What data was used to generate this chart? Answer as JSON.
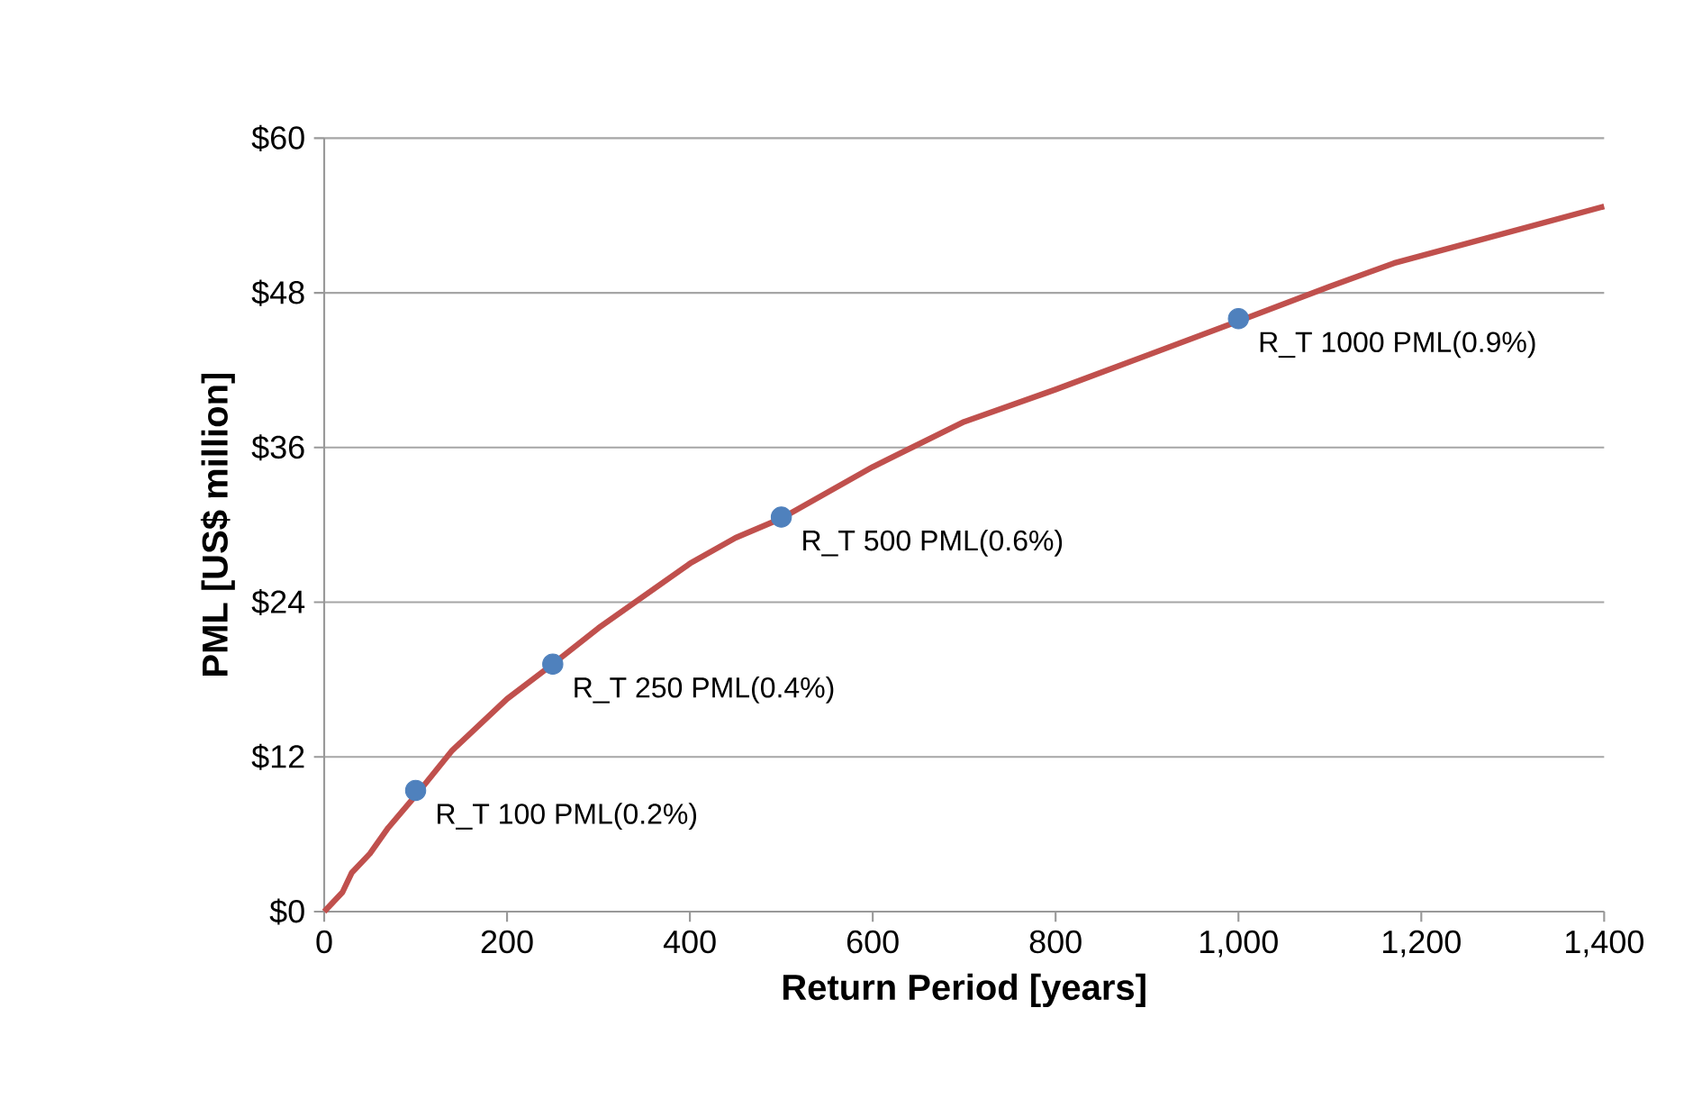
{
  "chart_data": {
    "type": "line",
    "xlabel": "Return Period [years]",
    "ylabel": "PML [US$ million]",
    "xlim": [
      0,
      1400
    ],
    "ylim": [
      0,
      60
    ],
    "xticks": [
      0,
      200,
      400,
      600,
      800,
      {
        "value": 1000,
        "label": "1,000"
      },
      {
        "value": 1200,
        "label": "1,200"
      },
      {
        "value": 1400,
        "label": "1,400"
      }
    ],
    "yticks": [
      {
        "value": 0,
        "label": "$0"
      },
      {
        "value": 12,
        "label": "$12"
      },
      {
        "value": 24,
        "label": "$24"
      },
      {
        "value": 36,
        "label": "$36"
      },
      {
        "value": 48,
        "label": "$48"
      },
      {
        "value": 60,
        "label": "$60"
      }
    ],
    "grid": "y",
    "series": [
      {
        "color": "#c0504d",
        "marker": "none",
        "x": [
          0,
          20,
          30,
          50,
          70,
          100,
          140,
          200,
          250,
          300,
          400,
          450,
          500,
          600,
          700,
          800,
          1000,
          1100,
          1170,
          1400
        ],
        "values": [
          0,
          1.5,
          3,
          4.5,
          6.5,
          9,
          12.5,
          16.5,
          19.2,
          22,
          27,
          29,
          30.5,
          34.5,
          38,
          40.5,
          45.8,
          48.5,
          50.3,
          54.7
        ]
      },
      {
        "type": "scatter",
        "marker": "circle",
        "colors": [
          "#4f81bd",
          "#4f81bd",
          "#4f81bd",
          "#4f81bd"
        ],
        "x": [
          100,
          250,
          500,
          1000
        ],
        "values": [
          9.4,
          19.2,
          30.6,
          46
        ]
      }
    ],
    "annotations": [
      {
        "text": "R_T 100 PML(0.2%)",
        "x": 100,
        "y": 9.4
      },
      {
        "text": "R_T 250 PML(0.4%)",
        "x": 250,
        "y": 19.2
      },
      {
        "text": "R_T 500 PML(0.6%)",
        "x": 500,
        "y": 30.6
      },
      {
        "text": "R_T 1000 PML(0.9%)",
        "x": 1000,
        "y": 46
      }
    ]
  }
}
